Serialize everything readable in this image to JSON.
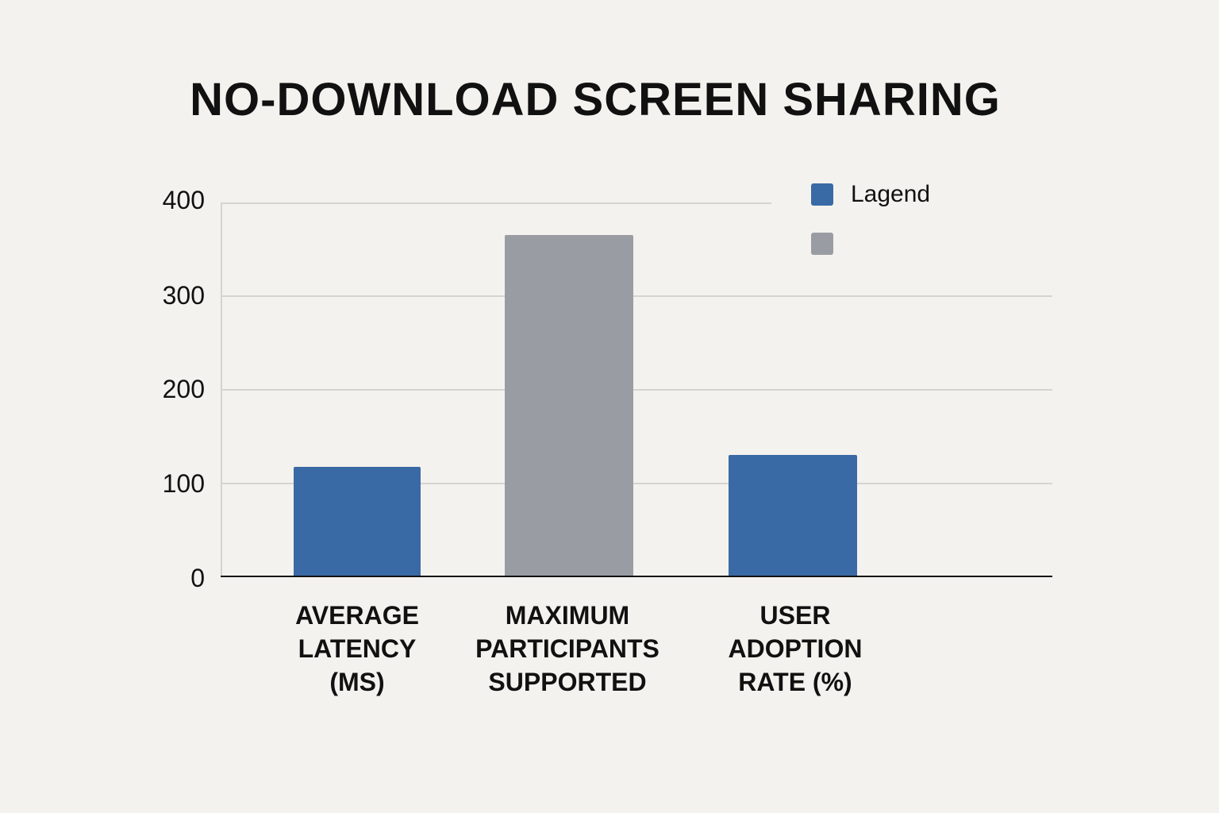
{
  "title": "NO-DOWNLOAD SCREEN SHARING",
  "colors": {
    "blue": "#3a6aa6",
    "gray": "#999da3",
    "background": "#f4f2ee"
  },
  "y_axis": {
    "ticks": [
      "400",
      "300",
      "200",
      "100",
      "0"
    ]
  },
  "legend": {
    "items": [
      {
        "label": "Lagend",
        "color": "#3a6aa6"
      },
      {
        "label": "",
        "color": "#999da3"
      }
    ]
  },
  "x_labels": [
    [
      "AVERAGE",
      "LATENCY",
      "(MS)"
    ],
    [
      "MAXIMUM",
      "PARTICIPANTS",
      "SUPPORTED"
    ],
    [
      "USER",
      "ADOPTION",
      "RATE (%)"
    ]
  ],
  "chart_data": {
    "type": "bar",
    "title": "NO-DOWNLOAD SCREEN SHARING",
    "categories": [
      "AVERAGE LATENCY (MS)",
      "MAXIMUM PARTICIPANTS SUPPORTED",
      "USER ADOPTION RATE (%)"
    ],
    "values": [
      117,
      365,
      130
    ],
    "bar_colors": [
      "#3a6aa6",
      "#999da3",
      "#3a6aa6"
    ],
    "legend": [
      "Lagend",
      ""
    ],
    "legend_position": "top-right",
    "xlabel": "",
    "ylabel": "",
    "ylim": [
      0,
      400
    ],
    "yticks": [
      0,
      100,
      200,
      300,
      400
    ],
    "grid": true
  }
}
